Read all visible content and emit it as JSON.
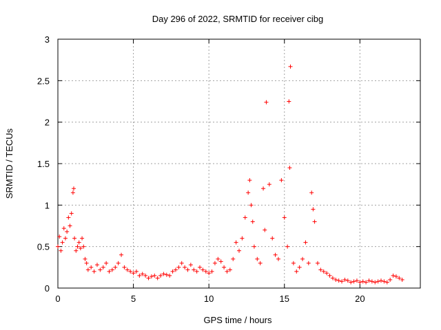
{
  "chart_data": {
    "type": "scatter",
    "title": "Day 296 of 2022, SRMTID for receiver cibg",
    "xlabel": "GPS time / hours",
    "ylabel": "SRMTID / TECUs",
    "xlim": [
      0,
      24
    ],
    "ylim": [
      0,
      3
    ],
    "xticks": [
      0,
      5,
      10,
      15,
      20
    ],
    "xtick_labels": [
      "0",
      "5",
      "10",
      "15",
      "20"
    ],
    "yticks": [
      0,
      0.5,
      1,
      1.5,
      2,
      2.5,
      3
    ],
    "ytick_labels": [
      "0",
      "0.5",
      "1",
      "1.5",
      "2",
      "2.5",
      "3"
    ],
    "grid": true,
    "marker": "+",
    "color": "#ff0000",
    "series": [
      {
        "name": "SRMTID",
        "x": [
          0.0,
          0.1,
          0.2,
          0.3,
          0.4,
          0.5,
          0.6,
          0.7,
          0.8,
          0.9,
          1.0,
          1.05,
          1.1,
          1.2,
          1.3,
          1.4,
          1.5,
          1.6,
          1.7,
          1.8,
          1.9,
          2.0,
          2.2,
          2.4,
          2.6,
          2.8,
          3.0,
          3.2,
          3.4,
          3.6,
          3.8,
          4.0,
          4.2,
          4.4,
          4.6,
          4.8,
          5.0,
          5.2,
          5.4,
          5.6,
          5.8,
          6.0,
          6.2,
          6.4,
          6.6,
          6.8,
          7.0,
          7.2,
          7.4,
          7.6,
          7.8,
          8.0,
          8.2,
          8.4,
          8.6,
          8.8,
          9.0,
          9.2,
          9.4,
          9.6,
          9.8,
          10.0,
          10.2,
          10.4,
          10.6,
          10.8,
          11.0,
          11.2,
          11.4,
          11.6,
          11.8,
          12.0,
          12.2,
          12.4,
          12.6,
          12.7,
          12.8,
          12.9,
          13.0,
          13.2,
          13.4,
          13.6,
          13.7,
          13.8,
          14.0,
          14.2,
          14.4,
          14.6,
          14.8,
          15.0,
          15.2,
          15.3,
          15.35,
          15.4,
          15.6,
          15.8,
          16.0,
          16.2,
          16.4,
          16.6,
          16.8,
          16.9,
          17.0,
          17.2,
          17.4,
          17.6,
          17.8,
          18.0,
          18.2,
          18.4,
          18.6,
          18.8,
          19.0,
          19.2,
          19.4,
          19.6,
          19.8,
          20.0,
          20.2,
          20.4,
          20.6,
          20.8,
          21.0,
          21.2,
          21.4,
          21.6,
          21.8,
          22.0,
          22.2,
          22.4,
          22.6,
          22.8
        ],
        "y": [
          0.5,
          0.62,
          0.45,
          0.55,
          0.72,
          0.6,
          0.68,
          0.85,
          0.75,
          0.9,
          1.15,
          1.2,
          0.6,
          0.45,
          0.5,
          0.55,
          0.48,
          0.6,
          0.5,
          0.35,
          0.3,
          0.22,
          0.25,
          0.2,
          0.28,
          0.22,
          0.25,
          0.3,
          0.2,
          0.22,
          0.25,
          0.3,
          0.4,
          0.25,
          0.22,
          0.2,
          0.18,
          0.2,
          0.15,
          0.17,
          0.15,
          0.12,
          0.14,
          0.15,
          0.12,
          0.15,
          0.17,
          0.16,
          0.15,
          0.2,
          0.22,
          0.25,
          0.3,
          0.25,
          0.22,
          0.28,
          0.22,
          0.2,
          0.25,
          0.22,
          0.2,
          0.18,
          0.2,
          0.3,
          0.35,
          0.32,
          0.25,
          0.2,
          0.22,
          0.35,
          0.55,
          0.45,
          0.6,
          0.85,
          1.15,
          1.3,
          1.0,
          0.8,
          0.5,
          0.35,
          0.3,
          1.2,
          0.7,
          2.24,
          1.25,
          0.6,
          0.4,
          0.35,
          1.3,
          0.85,
          0.5,
          2.25,
          1.45,
          2.67,
          0.3,
          0.2,
          0.25,
          0.35,
          0.55,
          0.3,
          1.15,
          0.95,
          0.8,
          0.3,
          0.22,
          0.2,
          0.18,
          0.15,
          0.12,
          0.1,
          0.09,
          0.08,
          0.1,
          0.09,
          0.07,
          0.08,
          0.09,
          0.07,
          0.08,
          0.07,
          0.09,
          0.08,
          0.07,
          0.08,
          0.09,
          0.08,
          0.07,
          0.1,
          0.15,
          0.14,
          0.12,
          0.1
        ]
      }
    ]
  }
}
